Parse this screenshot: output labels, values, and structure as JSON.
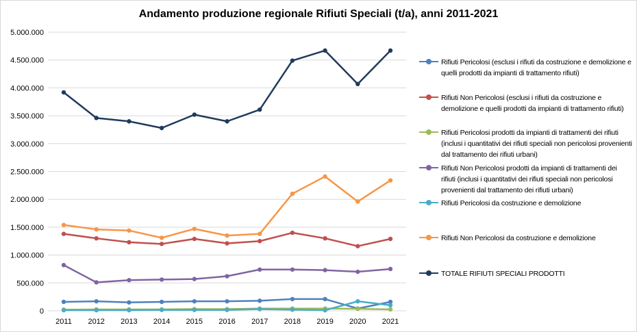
{
  "chart_data": {
    "type": "line",
    "title": "Andamento produzione regionale Rifiuti Speciali (t/a),  anni 2011-2021",
    "xlabel": "",
    "ylabel": "",
    "categories": [
      "2011",
      "2012",
      "2013",
      "2014",
      "2015",
      "2016",
      "2017",
      "2018",
      "2019",
      "2020",
      "2021"
    ],
    "ylim": [
      0,
      5000000
    ],
    "yticks": [
      {
        "value": 0,
        "label": "0"
      },
      {
        "value": 500000,
        "label": "500.000"
      },
      {
        "value": 1000000,
        "label": "1.000.000"
      },
      {
        "value": 1500000,
        "label": "1.500.000"
      },
      {
        "value": 2000000,
        "label": "2.000.000"
      },
      {
        "value": 2500000,
        "label": "2.500.000"
      },
      {
        "value": 3000000,
        "label": "3.000.000"
      },
      {
        "value": 3500000,
        "label": "3.500.000"
      },
      {
        "value": 4000000,
        "label": "4.000.000"
      },
      {
        "value": 4500000,
        "label": "4.500.000"
      },
      {
        "value": 5000000,
        "label": "5.000.000"
      }
    ],
    "grid": "horizontal",
    "legend_position": "right",
    "series": [
      {
        "name": "Rifiuti Pericolosi (esclusi i rifiuti da costruzione e demolizione e quelli prodotti da impianti di trattamento rifiuti)",
        "color": "#4F81BD",
        "values": [
          160000,
          170000,
          150000,
          160000,
          170000,
          170000,
          180000,
          210000,
          210000,
          40000,
          160000
        ]
      },
      {
        "name": "Rifiuti Non Pericolosi (esclusi i rifiuti da costruzione e demolizione e quelli prodotti da impianti di trattamento rifiuti)",
        "color": "#C0504D",
        "values": [
          1380000,
          1300000,
          1230000,
          1200000,
          1290000,
          1210000,
          1250000,
          1400000,
          1300000,
          1160000,
          1290000
        ]
      },
      {
        "name": "Rifiuti Pericolosi prodotti da impianti di trattamenti dei rifiuti (inclusi i quantitativi dei rifiuti speciali non pericolosi provenienti dal trattamento dei rifiuti urbani)",
        "color": "#9BBB59",
        "values": [
          20000,
          25000,
          25000,
          25000,
          30000,
          30000,
          40000,
          40000,
          40000,
          35000,
          25000
        ]
      },
      {
        "name": "Rifiuti Non Pericolosi prodotti da impianti di trattamenti dei rifiuti (inclusi i quantitativi dei rifiuti speciali non pericolosi provenienti dal trattamento dei rifiuti urbani)",
        "color": "#8064A2",
        "values": [
          820000,
          510000,
          550000,
          560000,
          570000,
          620000,
          740000,
          740000,
          730000,
          700000,
          750000
        ]
      },
      {
        "name": "Rifiuti Pericolosi da costruzione e demolizione",
        "color": "#4BACC6",
        "values": [
          10000,
          10000,
          10000,
          15000,
          15000,
          15000,
          30000,
          20000,
          10000,
          170000,
          100000
        ]
      },
      {
        "name": "Rifiuti Non Pericolosi da costruzione e demolizione",
        "color": "#F79646",
        "values": [
          1540000,
          1460000,
          1440000,
          1310000,
          1470000,
          1350000,
          1380000,
          2100000,
          2410000,
          1960000,
          2340000
        ]
      },
      {
        "name": "TOTALE RIFIUTI SPECIALI PRODOTTI",
        "color": "#1F3B5C",
        "values": [
          3920000,
          3460000,
          3400000,
          3280000,
          3520000,
          3400000,
          3610000,
          4490000,
          4670000,
          4070000,
          4670000
        ]
      }
    ]
  }
}
